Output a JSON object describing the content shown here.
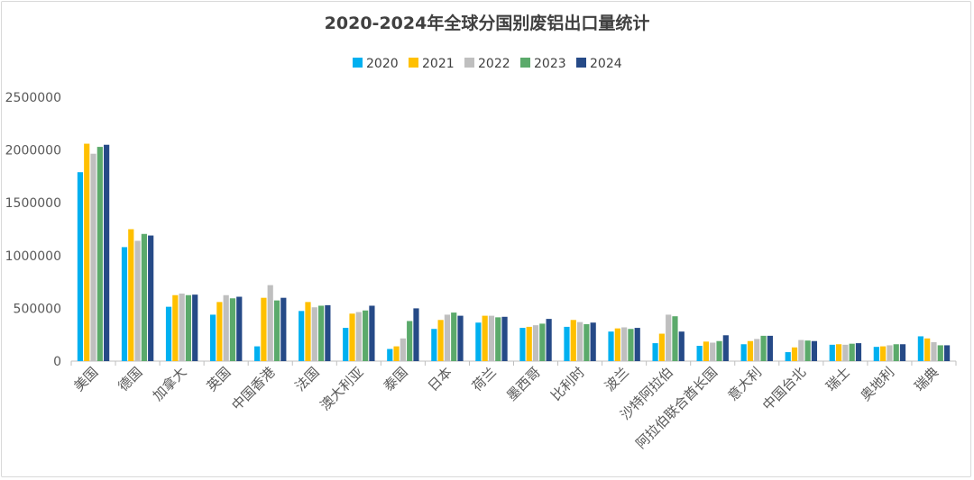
{
  "chart_data": {
    "type": "bar",
    "title": "2020-2024年全球分国别废铝出口量统计",
    "xlabel": "",
    "ylabel": "",
    "ylim": [
      0,
      2500000
    ],
    "yticks": [
      "0",
      "500000",
      "1000000",
      "1500000",
      "2000000",
      "2500000"
    ],
    "grid": false,
    "legend_position": "top-center",
    "colors": [
      "#00B0F0",
      "#FFC000",
      "#BFBFBF",
      "#5BAA6B",
      "#264A87"
    ],
    "categories": [
      "美国",
      "德国",
      "加拿大",
      "英国",
      "中国香港",
      "法国",
      "澳大利亚",
      "泰国",
      "日本",
      "荷兰",
      "墨西哥",
      "比利时",
      "波兰",
      "沙特阿拉伯",
      "阿拉伯联合酋长国",
      "意大利",
      "中国台北",
      "瑞士",
      "奥地利",
      "瑞典"
    ],
    "series": [
      {
        "name": "2020",
        "values": [
          1790000,
          1080000,
          515000,
          440000,
          140000,
          475000,
          315000,
          115000,
          305000,
          365000,
          315000,
          325000,
          280000,
          170000,
          145000,
          160000,
          85000,
          155000,
          135000,
          235000
        ]
      },
      {
        "name": "2021",
        "values": [
          2060000,
          1250000,
          625000,
          560000,
          600000,
          560000,
          450000,
          140000,
          390000,
          430000,
          325000,
          390000,
          310000,
          260000,
          185000,
          190000,
          130000,
          160000,
          140000,
          215000
        ]
      },
      {
        "name": "2022",
        "values": [
          1965000,
          1140000,
          640000,
          625000,
          720000,
          510000,
          465000,
          215000,
          440000,
          430000,
          340000,
          370000,
          320000,
          440000,
          175000,
          210000,
          200000,
          155000,
          150000,
          180000
        ]
      },
      {
        "name": "2023",
        "values": [
          2030000,
          1205000,
          625000,
          595000,
          575000,
          525000,
          480000,
          380000,
          460000,
          415000,
          355000,
          350000,
          305000,
          425000,
          190000,
          240000,
          195000,
          165000,
          160000,
          150000
        ]
      },
      {
        "name": "2024",
        "values": [
          2050000,
          1190000,
          630000,
          610000,
          600000,
          530000,
          525000,
          500000,
          430000,
          420000,
          400000,
          365000,
          315000,
          280000,
          245000,
          240000,
          190000,
          170000,
          160000,
          150000
        ]
      }
    ]
  }
}
